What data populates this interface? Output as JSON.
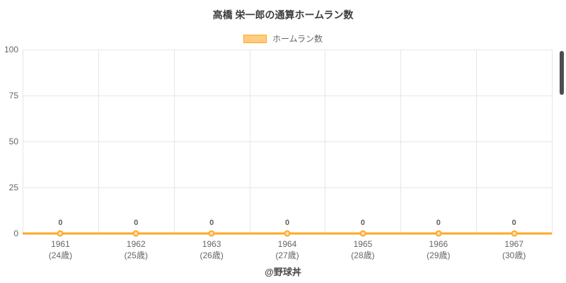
{
  "title": "高橋 栄一郎の通算ホームラン数",
  "legend": {
    "label": "ホームラン数"
  },
  "footer": "@野球丼",
  "colors": {
    "line": "#ffa726",
    "legend_fill": "#ffcc80",
    "marker_fill": "#ffe0b2",
    "grid": "#e6e6e6",
    "text": "#666666"
  },
  "chart_data": {
    "type": "line",
    "title": "高橋 栄一郎の通算ホームラン数",
    "categories": [
      "1961",
      "1962",
      "1963",
      "1964",
      "1965",
      "1966",
      "1967"
    ],
    "age_labels": [
      "(24歳)",
      "(25歳)",
      "(26歳)",
      "(27歳)",
      "(28歳)",
      "(29歳)",
      "(30歳)"
    ],
    "series": [
      {
        "name": "ホームラン数",
        "values": [
          0,
          0,
          0,
          0,
          0,
          0,
          0
        ]
      }
    ],
    "point_labels": [
      "0",
      "0",
      "0",
      "0",
      "0",
      "0",
      "0"
    ],
    "xlabel": "",
    "ylabel": "",
    "ylim": [
      0,
      100
    ],
    "yticks": [
      0,
      25,
      50,
      75,
      100
    ],
    "grid": true,
    "legend_position": "top"
  }
}
